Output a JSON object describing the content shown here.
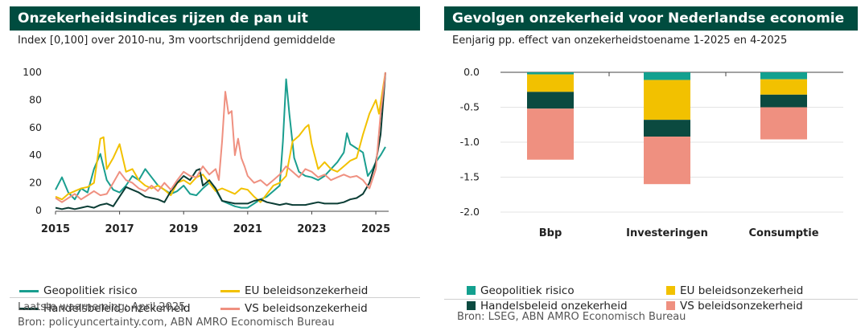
{
  "left": {
    "title": "Onzekerheidsindices rijzen de pan uit",
    "subtitle": "Index [0,100] over 2010-nu, 3m voortschrijdend gemiddelde",
    "footer": [
      "Laatste waarneming: April 2025",
      "Bron: policyuncertainty.com, ABN AMRO Economisch Bureau"
    ]
  },
  "right": {
    "title": "Gevolgen onzekerheid voor Nederlandse economie",
    "subtitle": "Eenjarig pp. effect van onzekerheidstoename 1-2025 en 4-2025",
    "footer": [
      "Bron: LSEG, ABN AMRO Economisch Bureau"
    ]
  },
  "chart_data": [
    {
      "type": "line",
      "x_axis": "year",
      "xlim": [
        2015,
        2025.3
      ],
      "xticks": [
        2015,
        2017,
        2019,
        2021,
        2023,
        2025
      ],
      "ylim": [
        0,
        100
      ],
      "yticks": [
        0,
        20,
        40,
        60,
        80,
        100
      ],
      "grid": false,
      "legend": "bottom",
      "series": [
        {
          "name": "Geopolitiek risico",
          "color": "#1a9e8f",
          "points": [
            [
              2015.0,
              15
            ],
            [
              2015.2,
              24
            ],
            [
              2015.4,
              13
            ],
            [
              2015.6,
              8
            ],
            [
              2015.8,
              16
            ],
            [
              2016.0,
              13
            ],
            [
              2016.2,
              30
            ],
            [
              2016.4,
              41
            ],
            [
              2016.6,
              22
            ],
            [
              2016.8,
              15
            ],
            [
              2017.0,
              13
            ],
            [
              2017.2,
              18
            ],
            [
              2017.4,
              25
            ],
            [
              2017.6,
              22
            ],
            [
              2017.8,
              30
            ],
            [
              2018.0,
              24
            ],
            [
              2018.2,
              18
            ],
            [
              2018.4,
              15
            ],
            [
              2018.6,
              12
            ],
            [
              2018.8,
              14
            ],
            [
              2019.0,
              18
            ],
            [
              2019.2,
              12
            ],
            [
              2019.4,
              11
            ],
            [
              2019.6,
              16
            ],
            [
              2019.8,
              20
            ],
            [
              2020.0,
              15
            ],
            [
              2020.2,
              7
            ],
            [
              2020.4,
              5
            ],
            [
              2020.6,
              3
            ],
            [
              2020.8,
              2
            ],
            [
              2021.0,
              2
            ],
            [
              2021.2,
              5
            ],
            [
              2021.4,
              8
            ],
            [
              2021.6,
              10
            ],
            [
              2021.8,
              14
            ],
            [
              2022.0,
              18
            ],
            [
              2022.1,
              50
            ],
            [
              2022.2,
              95
            ],
            [
              2022.3,
              70
            ],
            [
              2022.45,
              38
            ],
            [
              2022.6,
              28
            ],
            [
              2022.8,
              25
            ],
            [
              2023.0,
              24
            ],
            [
              2023.2,
              22
            ],
            [
              2023.4,
              25
            ],
            [
              2023.6,
              30
            ],
            [
              2023.8,
              35
            ],
            [
              2024.0,
              42
            ],
            [
              2024.1,
              56
            ],
            [
              2024.2,
              48
            ],
            [
              2024.4,
              45
            ],
            [
              2024.6,
              42
            ],
            [
              2024.75,
              25
            ],
            [
              2024.9,
              30
            ],
            [
              2025.0,
              35
            ],
            [
              2025.15,
              40
            ],
            [
              2025.3,
              46
            ]
          ]
        },
        {
          "name": "EU beleidsonzekerheid",
          "color": "#f2c100",
          "points": [
            [
              2015.0,
              10
            ],
            [
              2015.2,
              8
            ],
            [
              2015.4,
              12
            ],
            [
              2015.6,
              14
            ],
            [
              2015.8,
              16
            ],
            [
              2016.0,
              17
            ],
            [
              2016.2,
              20
            ],
            [
              2016.4,
              52
            ],
            [
              2016.5,
              53
            ],
            [
              2016.6,
              30
            ],
            [
              2016.8,
              38
            ],
            [
              2017.0,
              48
            ],
            [
              2017.2,
              28
            ],
            [
              2017.4,
              30
            ],
            [
              2017.6,
              22
            ],
            [
              2017.8,
              18
            ],
            [
              2018.0,
              16
            ],
            [
              2018.2,
              18
            ],
            [
              2018.4,
              15
            ],
            [
              2018.6,
              11
            ],
            [
              2018.8,
              20
            ],
            [
              2019.0,
              22
            ],
            [
              2019.2,
              19
            ],
            [
              2019.4,
              24
            ],
            [
              2019.6,
              26
            ],
            [
              2019.8,
              20
            ],
            [
              2020.0,
              14
            ],
            [
              2020.2,
              16
            ],
            [
              2020.4,
              14
            ],
            [
              2020.6,
              12
            ],
            [
              2020.8,
              16
            ],
            [
              2021.0,
              15
            ],
            [
              2021.2,
              10
            ],
            [
              2021.4,
              6
            ],
            [
              2021.6,
              12
            ],
            [
              2021.8,
              18
            ],
            [
              2022.0,
              20
            ],
            [
              2022.2,
              25
            ],
            [
              2022.4,
              50
            ],
            [
              2022.6,
              54
            ],
            [
              2022.8,
              60
            ],
            [
              2022.9,
              62
            ],
            [
              2023.0,
              48
            ],
            [
              2023.2,
              30
            ],
            [
              2023.4,
              35
            ],
            [
              2023.6,
              30
            ],
            [
              2023.8,
              28
            ],
            [
              2024.0,
              32
            ],
            [
              2024.2,
              36
            ],
            [
              2024.4,
              38
            ],
            [
              2024.6,
              55
            ],
            [
              2024.8,
              70
            ],
            [
              2024.9,
              75
            ],
            [
              2025.0,
              80
            ],
            [
              2025.1,
              70
            ],
            [
              2025.2,
              85
            ],
            [
              2025.3,
              100
            ]
          ]
        },
        {
          "name": "Handelsbeleid onzekerheid",
          "color": "#0b3d35",
          "points": [
            [
              2015.0,
              2
            ],
            [
              2015.2,
              1
            ],
            [
              2015.4,
              2
            ],
            [
              2015.6,
              1
            ],
            [
              2015.8,
              2
            ],
            [
              2016.0,
              3
            ],
            [
              2016.2,
              2
            ],
            [
              2016.4,
              4
            ],
            [
              2016.6,
              5
            ],
            [
              2016.8,
              3
            ],
            [
              2017.0,
              10
            ],
            [
              2017.2,
              17
            ],
            [
              2017.4,
              15
            ],
            [
              2017.6,
              13
            ],
            [
              2017.8,
              10
            ],
            [
              2018.0,
              9
            ],
            [
              2018.2,
              8
            ],
            [
              2018.4,
              6
            ],
            [
              2018.6,
              14
            ],
            [
              2018.8,
              20
            ],
            [
              2019.0,
              25
            ],
            [
              2019.2,
              22
            ],
            [
              2019.4,
              29
            ],
            [
              2019.5,
              30
            ],
            [
              2019.6,
              18
            ],
            [
              2019.8,
              22
            ],
            [
              2020.0,
              16
            ],
            [
              2020.2,
              7
            ],
            [
              2020.4,
              6
            ],
            [
              2020.6,
              5
            ],
            [
              2020.8,
              5
            ],
            [
              2021.0,
              5
            ],
            [
              2021.2,
              7
            ],
            [
              2021.4,
              8
            ],
            [
              2021.6,
              6
            ],
            [
              2021.8,
              5
            ],
            [
              2022.0,
              4
            ],
            [
              2022.2,
              5
            ],
            [
              2022.4,
              4
            ],
            [
              2022.6,
              4
            ],
            [
              2022.8,
              4
            ],
            [
              2023.0,
              5
            ],
            [
              2023.2,
              6
            ],
            [
              2023.4,
              5
            ],
            [
              2023.6,
              5
            ],
            [
              2023.8,
              5
            ],
            [
              2024.0,
              6
            ],
            [
              2024.2,
              8
            ],
            [
              2024.4,
              9
            ],
            [
              2024.6,
              12
            ],
            [
              2024.8,
              20
            ],
            [
              2025.0,
              35
            ],
            [
              2025.15,
              55
            ],
            [
              2025.3,
              100
            ]
          ]
        },
        {
          "name": "VS beleidsonzekerheid",
          "color": "#ef9080",
          "points": [
            [
              2015.0,
              9
            ],
            [
              2015.2,
              6
            ],
            [
              2015.4,
              9
            ],
            [
              2015.6,
              12
            ],
            [
              2015.8,
              8
            ],
            [
              2016.0,
              11
            ],
            [
              2016.2,
              14
            ],
            [
              2016.4,
              11
            ],
            [
              2016.6,
              12
            ],
            [
              2016.8,
              20
            ],
            [
              2017.0,
              28
            ],
            [
              2017.2,
              22
            ],
            [
              2017.4,
              20
            ],
            [
              2017.6,
              16
            ],
            [
              2017.8,
              14
            ],
            [
              2018.0,
              18
            ],
            [
              2018.2,
              14
            ],
            [
              2018.4,
              20
            ],
            [
              2018.6,
              15
            ],
            [
              2018.8,
              22
            ],
            [
              2019.0,
              28
            ],
            [
              2019.2,
              25
            ],
            [
              2019.4,
              24
            ],
            [
              2019.6,
              32
            ],
            [
              2019.8,
              26
            ],
            [
              2020.0,
              30
            ],
            [
              2020.1,
              22
            ],
            [
              2020.2,
              50
            ],
            [
              2020.3,
              86
            ],
            [
              2020.4,
              70
            ],
            [
              2020.5,
              72
            ],
            [
              2020.6,
              40
            ],
            [
              2020.7,
              52
            ],
            [
              2020.8,
              38
            ],
            [
              2020.9,
              32
            ],
            [
              2021.0,
              25
            ],
            [
              2021.2,
              20
            ],
            [
              2021.4,
              22
            ],
            [
              2021.6,
              18
            ],
            [
              2021.8,
              22
            ],
            [
              2022.0,
              26
            ],
            [
              2022.2,
              32
            ],
            [
              2022.4,
              28
            ],
            [
              2022.6,
              24
            ],
            [
              2022.8,
              30
            ],
            [
              2023.0,
              28
            ],
            [
              2023.2,
              24
            ],
            [
              2023.4,
              26
            ],
            [
              2023.6,
              22
            ],
            [
              2023.8,
              24
            ],
            [
              2024.0,
              26
            ],
            [
              2024.2,
              24
            ],
            [
              2024.4,
              25
            ],
            [
              2024.6,
              22
            ],
            [
              2024.8,
              16
            ],
            [
              2025.0,
              30
            ],
            [
              2025.15,
              70
            ],
            [
              2025.3,
              100
            ]
          ]
        }
      ]
    },
    {
      "type": "bar",
      "stacked": true,
      "categories": [
        "Bbp",
        "Investeringen",
        "Consumptie"
      ],
      "ylim": [
        -2.0,
        0.0
      ],
      "yticks": [
        "0.0",
        "-0.5",
        "-1.0",
        "-1.5",
        "-2.0"
      ],
      "legend": "bottom",
      "series": [
        {
          "name": "Geopolitiek risico",
          "color": "#13a08f",
          "values": [
            -0.03,
            -0.11,
            -0.1
          ]
        },
        {
          "name": "EU beleidsonzekerheid",
          "color": "#f2c100",
          "values": [
            -0.25,
            -0.57,
            -0.22
          ]
        },
        {
          "name": "Handelsbeleid onzekerheid",
          "color": "#0b4a40",
          "values": [
            -0.24,
            -0.24,
            -0.18
          ]
        },
        {
          "name": "VS beleidsonzekerheid",
          "color": "#ef9080",
          "values": [
            -0.73,
            -0.68,
            -0.46
          ]
        }
      ]
    }
  ]
}
